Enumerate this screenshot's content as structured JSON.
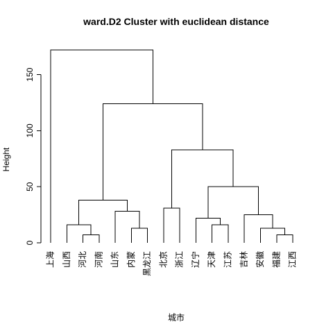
{
  "chart_data": {
    "type": "dendrogram",
    "title": "ward.D2 Cluster with euclidean distance",
    "xlabel": "城市",
    "ylabel": "Height",
    "ylim": [
      0,
      175
    ],
    "yticks": [
      0,
      50,
      100,
      150
    ],
    "leaves": [
      "上海",
      "山西",
      "河北",
      "河南",
      "山东",
      "内蒙",
      "黑龙江",
      "北京",
      "浙江",
      "辽宁",
      "天津",
      "江苏",
      "吉林",
      "安徽",
      "福建",
      "江西"
    ],
    "merges": [
      {
        "left": 2,
        "right": 3,
        "height": 7
      },
      {
        "left": 1,
        "right": "m0",
        "height": 16
      },
      {
        "left": 5,
        "right": 6,
        "height": 13
      },
      {
        "left": 4,
        "right": "m2",
        "height": 28
      },
      {
        "left": "m1",
        "right": "m3",
        "height": 38
      },
      {
        "left": 7,
        "right": 8,
        "height": 31
      },
      {
        "left": 10,
        "right": 11,
        "height": 16
      },
      {
        "left": 9,
        "right": "m6",
        "height": 22
      },
      {
        "left": 14,
        "right": 15,
        "height": 7
      },
      {
        "left": 13,
        "right": "m8",
        "height": 13
      },
      {
        "left": 12,
        "right": "m9",
        "height": 25
      },
      {
        "left": "m7",
        "right": "m10",
        "height": 50
      },
      {
        "left": "m5",
        "right": "m11",
        "height": 83
      },
      {
        "left": "m4",
        "right": "m12",
        "height": 124
      },
      {
        "left": 0,
        "right": "m13",
        "height": 172
      }
    ]
  }
}
